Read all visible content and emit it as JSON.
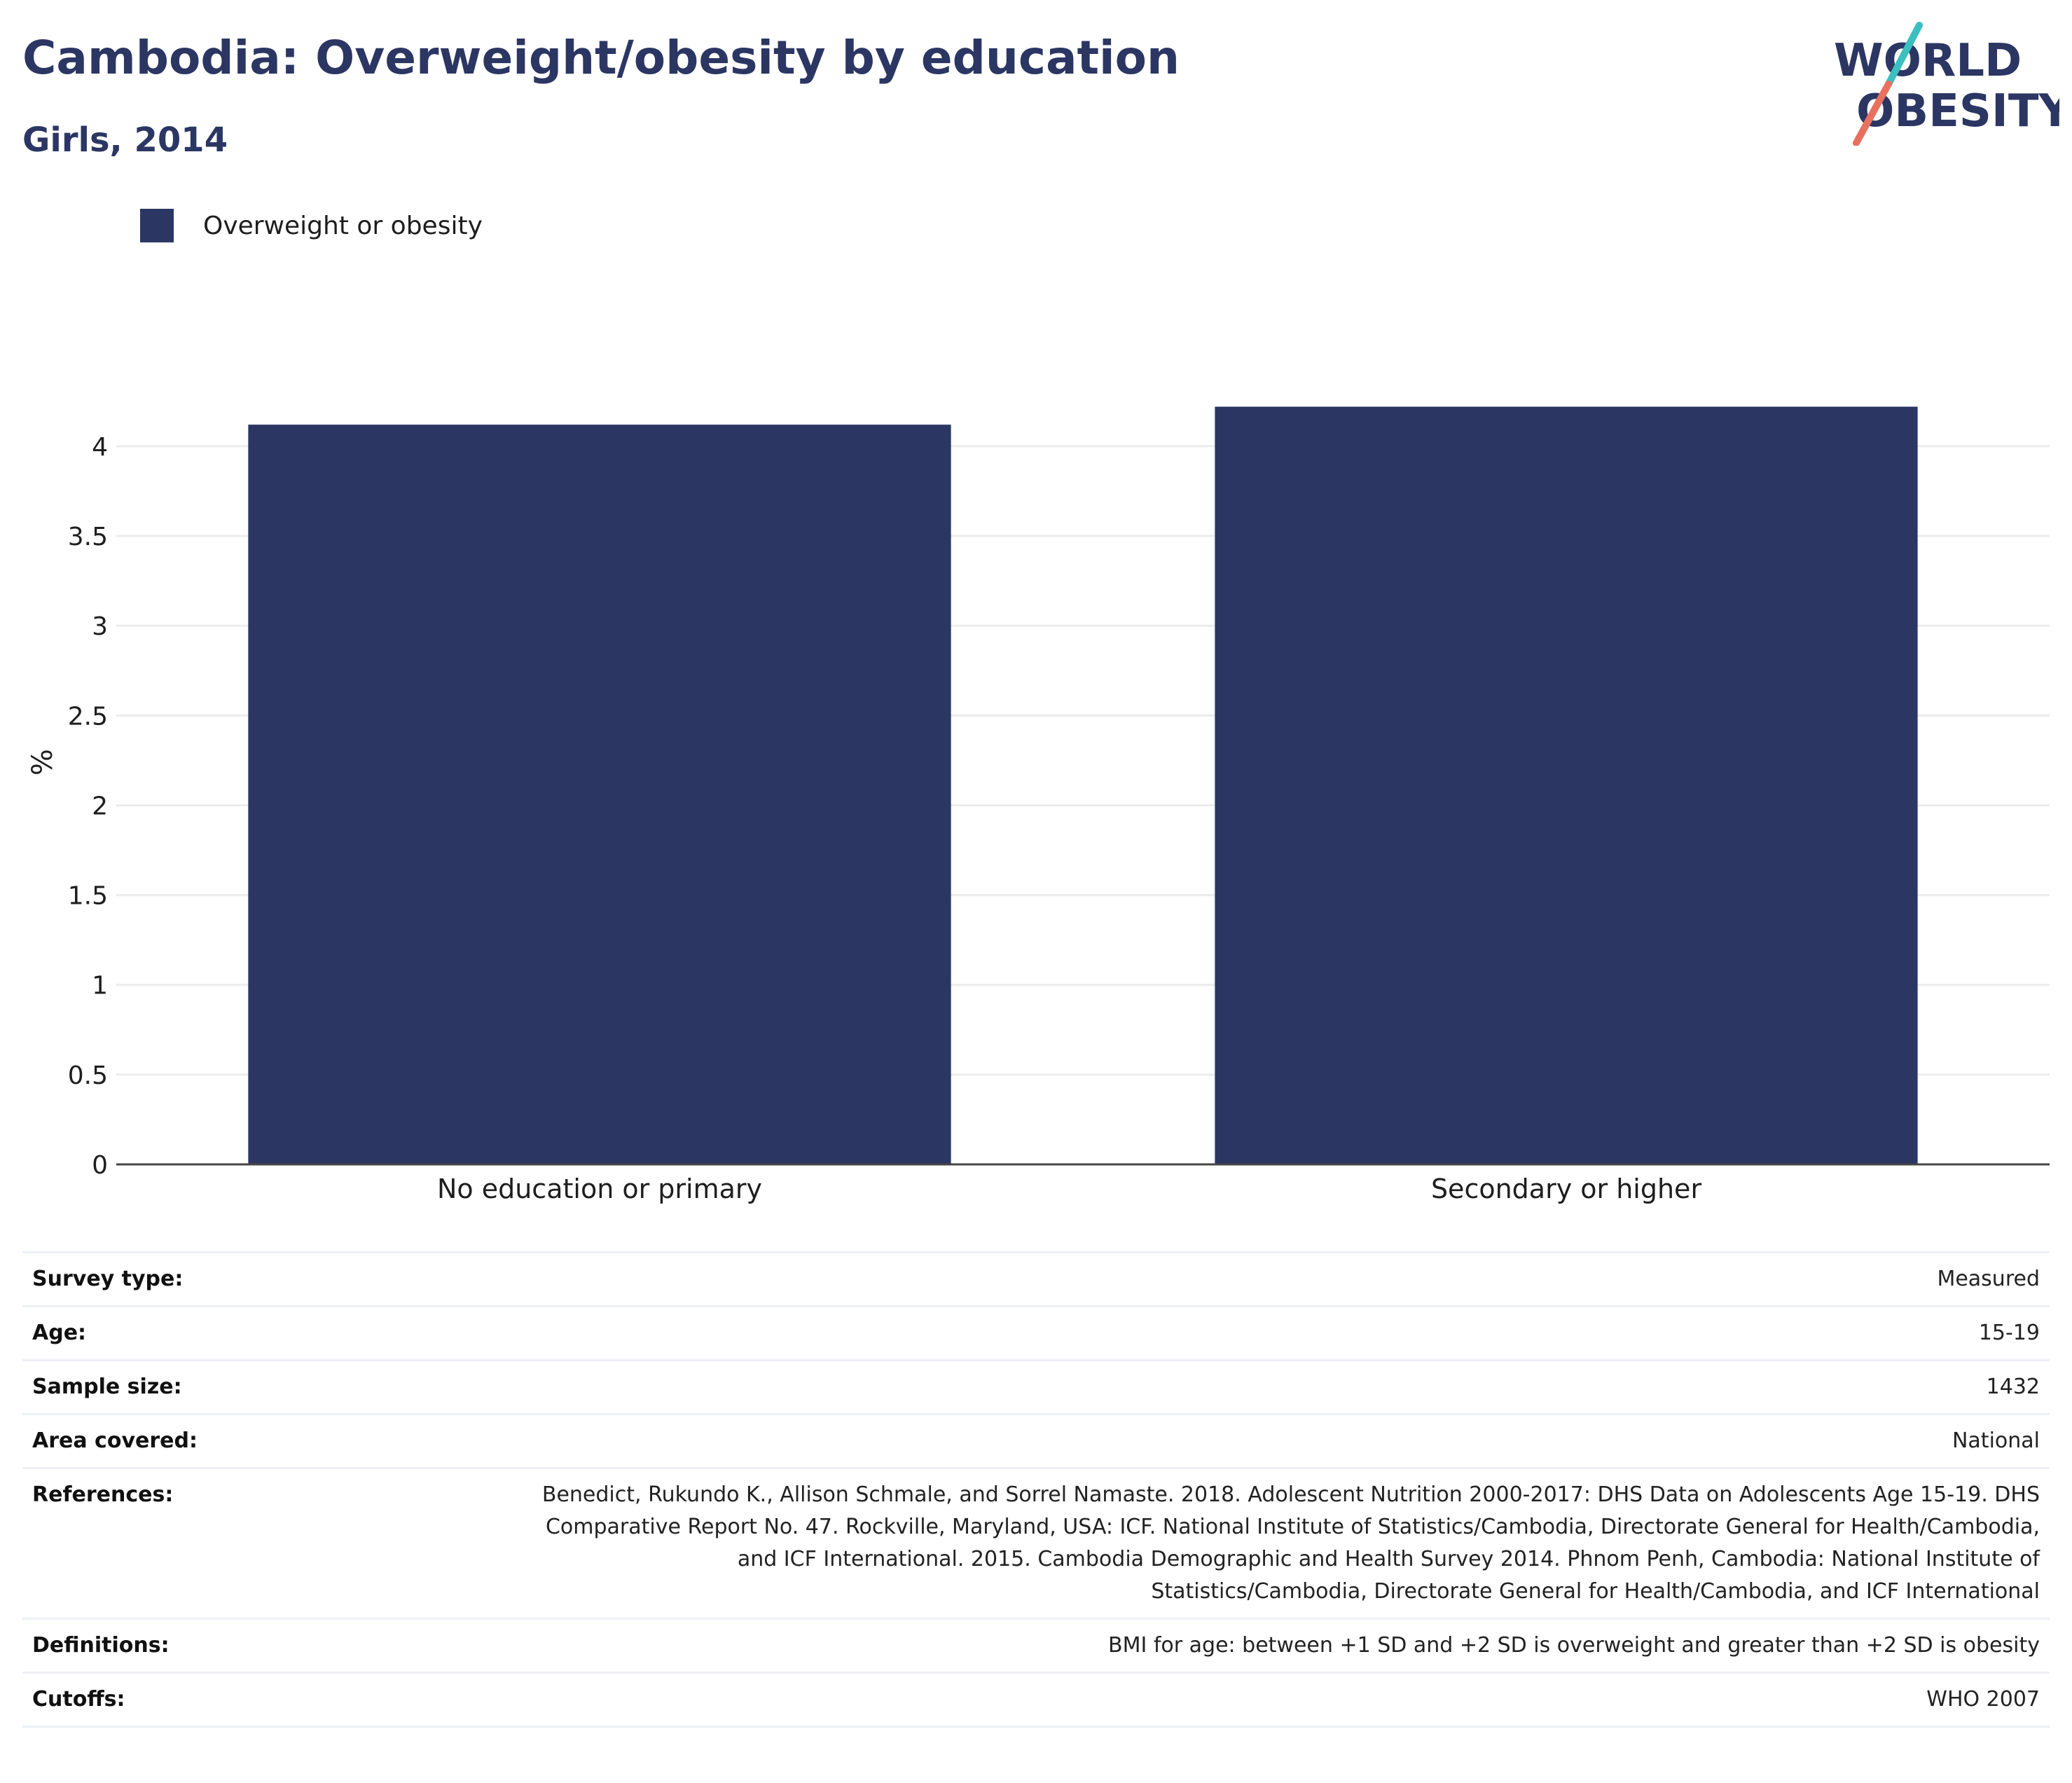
{
  "header": {
    "title": "Cambodia: Overweight/obesity by education",
    "subtitle": "Girls, 2014"
  },
  "logo": {
    "line1": "WORLD",
    "line2": "OBESITY",
    "icon": "world-obesity-logo",
    "slash_colors": [
      "#3bbfbf",
      "#e8705f"
    ]
  },
  "colors": {
    "bar": "#2b3663",
    "title": "#2b3663",
    "grid": "#ececec",
    "axis": "#444444"
  },
  "chart_data": {
    "type": "bar",
    "title": "Cambodia: Overweight/obesity by education",
    "subtitle": "Girls, 2014",
    "categories": [
      "No education or primary",
      "Secondary or higher"
    ],
    "series": [
      {
        "name": "Overweight or obesity",
        "values": [
          4.12,
          4.22
        ],
        "color": "#2b3663"
      }
    ],
    "xlabel": "",
    "ylabel": "%",
    "ylim": [
      0,
      4.3
    ],
    "yticks": [
      0,
      0.5,
      1,
      1.5,
      2,
      2.5,
      3,
      3.5,
      4
    ],
    "ytick_labels": [
      "0",
      "0.5",
      "1",
      "1.5",
      "2",
      "2.5",
      "3",
      "3.5",
      "4"
    ],
    "grid": true,
    "legend_position": "top-left"
  },
  "info": [
    {
      "label": "Survey type:",
      "value": "Measured"
    },
    {
      "label": "Age:",
      "value": "15-19"
    },
    {
      "label": "Sample size:",
      "value": "1432"
    },
    {
      "label": "Area covered:",
      "value": "National"
    },
    {
      "label": "References:",
      "value": "Benedict, Rukundo K., Allison Schmale, and Sorrel Namaste. 2018. Adolescent Nutrition 2000-2017: DHS Data on Adolescents Age 15-19. DHS Comparative Report No. 47. Rockville, Maryland, USA: ICF. National Institute of Statistics/Cambodia, Directorate General for Health/Cambodia, and ICF International. 2015. Cambodia Demographic and Health Survey 2014. Phnom Penh, Cambodia: National Institute of Statistics/Cambodia, Directorate General for Health/Cambodia, and ICF International"
    },
    {
      "label": "Definitions:",
      "value": "BMI for age: between +1 SD and +2 SD is overweight and greater than +2 SD is obesity"
    },
    {
      "label": "Cutoffs:",
      "value": "WHO 2007"
    }
  ]
}
